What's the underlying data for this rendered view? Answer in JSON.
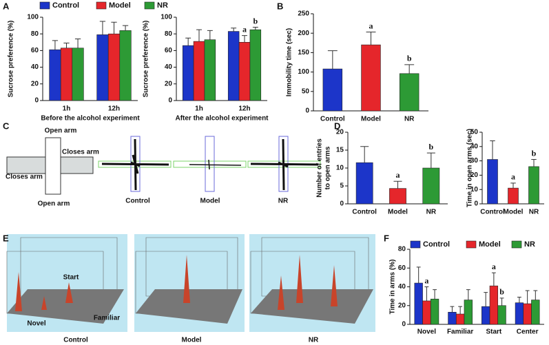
{
  "panel_labels": [
    "A",
    "B",
    "C",
    "D",
    "E",
    "F"
  ],
  "maze": {
    "labels": [
      "Open arm",
      "Closes arm",
      "Closes arm",
      "Open arm"
    ],
    "groups": [
      "Control",
      "Model",
      "NR"
    ]
  },
  "surfaces": {
    "labels": [
      "Start",
      "Novel",
      "Familiar"
    ],
    "groups": [
      "Control",
      "Model",
      "NR"
    ]
  },
  "chart_data": [
    {
      "type": "bar",
      "xlabel": "Before the alcohol experiment",
      "ylabel": [
        "Sucrose preference (%)"
      ],
      "categories": [
        "1h",
        "12h"
      ],
      "ylim": [
        0,
        100
      ],
      "yticks": [
        0,
        20,
        40,
        60,
        80,
        100
      ],
      "legend": true,
      "series": [
        {
          "name": "Control",
          "color": "#1c35c9",
          "values": [
            61,
            79
          ],
          "errors": [
            11,
            16
          ]
        },
        {
          "name": "Model",
          "color": "#e5262b",
          "values": [
            63,
            80
          ],
          "errors": [
            6,
            14
          ]
        },
        {
          "name": "NR",
          "color": "#2d9a35",
          "values": [
            63,
            84
          ],
          "errors": [
            11,
            6
          ]
        }
      ]
    },
    {
      "type": "bar",
      "xlabel": "After the alcohol experiment",
      "ylabel": [
        "Sucrose preference (%)"
      ],
      "categories": [
        "1h",
        "12h"
      ],
      "ylim": [
        0,
        100
      ],
      "yticks": [
        0,
        20,
        40,
        60,
        80,
        100
      ],
      "legend": false,
      "series": [
        {
          "color": "#1c35c9",
          "values": [
            66,
            83
          ],
          "errors": [
            9,
            4
          ]
        },
        {
          "color": "#e5262b",
          "values": [
            71,
            70
          ],
          "errors": [
            14,
            8
          ],
          "annotations": [
            null,
            "a"
          ]
        },
        {
          "color": "#2d9a35",
          "values": [
            73,
            85
          ],
          "errors": [
            11,
            3
          ],
          "annotations": [
            null,
            "b"
          ]
        }
      ]
    },
    {
      "type": "bar",
      "ylabel": [
        "Immobility time (sec)"
      ],
      "categories": [
        "Control",
        "Model",
        "NR"
      ],
      "ylim": [
        0,
        250
      ],
      "yticks": [
        0,
        50,
        100,
        150,
        200,
        250
      ],
      "values": [
        108,
        170,
        96
      ],
      "errors": [
        47,
        33,
        23
      ],
      "colors": [
        "#1c35c9",
        "#e5262b",
        "#2d9a35"
      ],
      "annotations": [
        null,
        "a",
        "b"
      ]
    },
    {
      "type": "bar",
      "ylabel": [
        "Number of entries",
        "to open arms"
      ],
      "categories": [
        "Control",
        "Model",
        "NR"
      ],
      "ylim": [
        0,
        20
      ],
      "yticks": [
        0,
        5,
        10,
        15,
        20
      ],
      "values": [
        11.5,
        4.3,
        10
      ],
      "errors": [
        4.5,
        2,
        4.2
      ],
      "colors": [
        "#1c35c9",
        "#e5262b",
        "#2d9a35"
      ],
      "annotations": [
        null,
        "a",
        "b"
      ]
    },
    {
      "type": "bar",
      "ylabel": [
        "Time in open arms (sec)"
      ],
      "categories": [
        "Control",
        "Model",
        "NR"
      ],
      "ylim": [
        0,
        50
      ],
      "yticks": [
        0,
        10,
        20,
        30,
        40,
        50
      ],
      "values": [
        31,
        11,
        26
      ],
      "errors": [
        13,
        3.5,
        5
      ],
      "colors": [
        "#1c35c9",
        "#e5262b",
        "#2d9a35"
      ],
      "annotations": [
        null,
        "a",
        "b"
      ]
    },
    {
      "type": "bar",
      "ylabel": [
        "Time in arms (%)"
      ],
      "categories": [
        "Novel",
        "Familiar",
        "Start",
        "Center"
      ],
      "ylim": [
        0,
        80
      ],
      "yticks": [
        0,
        20,
        40,
        60,
        80
      ],
      "legend": true,
      "series": [
        {
          "name": "Control",
          "color": "#1c35c9",
          "values": [
            44,
            13,
            19,
            23
          ],
          "errors": [
            17,
            6,
            15,
            6
          ]
        },
        {
          "name": "Model",
          "color": "#e5262b",
          "values": [
            25,
            11,
            41,
            22
          ],
          "errors": [
            15,
            8,
            14,
            14
          ],
          "annotations": [
            "a",
            null,
            "a",
            null
          ]
        },
        {
          "name": "NR",
          "color": "#2d9a35",
          "values": [
            27,
            26,
            20,
            26
          ],
          "errors": [
            10,
            11,
            8,
            10
          ],
          "annotations": [
            null,
            null,
            "b",
            null
          ]
        }
      ]
    }
  ]
}
